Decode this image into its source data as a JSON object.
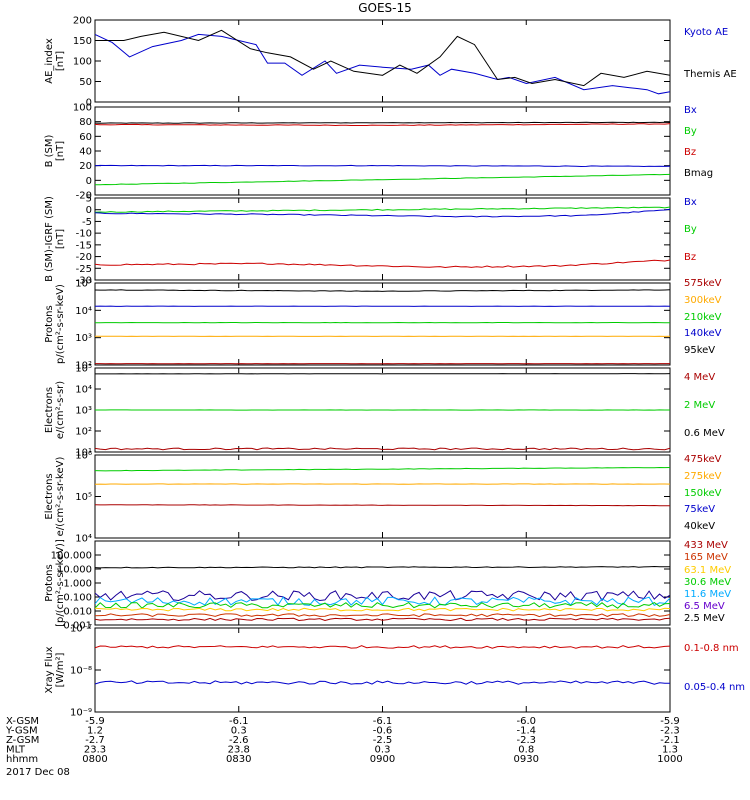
{
  "chart_data": {
    "title": "GOES-15",
    "date_label": "2017 Dec 08",
    "x_time": [
      "0800",
      "0830",
      "0900",
      "0930",
      "1000"
    ],
    "ephemeris_rows": [
      {
        "label": "X-GSM",
        "values": [
          "-5.9",
          "-6.1",
          "-6.1",
          "-6.0",
          "-5.9"
        ]
      },
      {
        "label": "Y-GSM",
        "values": [
          "1.2",
          "0.3",
          "-0.6",
          "-1.4",
          "-2.3"
        ]
      },
      {
        "label": "Z-GSM",
        "values": [
          "-2.7",
          "-2.6",
          "-2.5",
          "-2.3",
          "-2.1"
        ]
      },
      {
        "label": "MLT",
        "values": [
          "23.3",
          "23.8",
          "0.3",
          "0.8",
          "1.3"
        ]
      },
      {
        "label": "hhmm",
        "values": [
          "0800",
          "0830",
          "0900",
          "0930",
          "1000"
        ]
      }
    ],
    "panels": [
      {
        "type": "line",
        "ylabel": [
          "AE_index",
          "[nT]"
        ],
        "scale": "linear",
        "ylim": [
          0,
          200
        ],
        "ticks": [
          {
            "v": 0,
            "t": "0"
          },
          {
            "v": 50,
            "t": "50"
          },
          {
            "v": 100,
            "t": "100"
          },
          {
            "v": 150,
            "t": "150"
          },
          {
            "v": 200,
            "t": "200"
          }
        ],
        "legend": [
          {
            "label": "Kyoto AE",
            "color": "#0000cc"
          },
          {
            "label": "Themis AE",
            "color": "#000000"
          }
        ],
        "series": [
          {
            "name": "Kyoto AE",
            "color": "#0000cc",
            "noise": 0,
            "kind": "pts",
            "x": [
              0,
              0.03,
              0.06,
              0.1,
              0.15,
              0.18,
              0.22,
              0.28,
              0.3,
              0.33,
              0.36,
              0.4,
              0.42,
              0.46,
              0.5,
              0.55,
              0.58,
              0.6,
              0.62,
              0.66,
              0.7,
              0.72,
              0.75,
              0.8,
              0.85,
              0.9,
              0.93,
              0.96,
              0.98,
              1
            ],
            "y": [
              165,
              145,
              110,
              135,
              150,
              165,
              160,
              140,
              95,
              95,
              65,
              100,
              70,
              90,
              85,
              80,
              90,
              65,
              80,
              70,
              55,
              60,
              45,
              60,
              30,
              40,
              35,
              30,
              20,
              25
            ]
          },
          {
            "name": "Themis AE",
            "color": "#000000",
            "noise": 0,
            "kind": "pts",
            "x": [
              0,
              0.05,
              0.08,
              0.12,
              0.18,
              0.22,
              0.27,
              0.3,
              0.34,
              0.38,
              0.41,
              0.45,
              0.5,
              0.53,
              0.56,
              0.6,
              0.63,
              0.66,
              0.7,
              0.73,
              0.76,
              0.8,
              0.85,
              0.88,
              0.92,
              0.96,
              1
            ],
            "y": [
              150,
              150,
              160,
              170,
              150,
              175,
              130,
              120,
              110,
              80,
              100,
              75,
              65,
              90,
              70,
              110,
              160,
              140,
              55,
              60,
              45,
              55,
              40,
              70,
              60,
              75,
              65
            ]
          }
        ]
      },
      {
        "type": "line",
        "ylabel": [
          "B (SM)",
          "[nT]"
        ],
        "scale": "linear",
        "ylim": [
          -20,
          100
        ],
        "ticks": [
          {
            "v": -20,
            "t": "-20"
          },
          {
            "v": 0,
            "t": "0"
          },
          {
            "v": 20,
            "t": "20"
          },
          {
            "v": 40,
            "t": "40"
          },
          {
            "v": 60,
            "t": "60"
          },
          {
            "v": 80,
            "t": "80"
          },
          {
            "v": 100,
            "t": "100"
          }
        ],
        "legend": [
          {
            "label": "Bx",
            "color": "#0000cc"
          },
          {
            "label": "By",
            "color": "#00cc00"
          },
          {
            "label": "Bz",
            "color": "#cc0000"
          },
          {
            "label": "Bmag",
            "color": "#000000"
          }
        ],
        "series": [
          {
            "name": "Bmag",
            "color": "#000000",
            "noise": 0.3,
            "x": [
              0,
              1
            ],
            "y": [
              78,
              79
            ]
          },
          {
            "name": "Bz",
            "color": "#cc0000",
            "noise": 0.4,
            "x": [
              0,
              0.5,
              1
            ],
            "y": [
              76,
              75,
              77
            ]
          },
          {
            "name": "Bx",
            "color": "#0000cc",
            "noise": 0.4,
            "x": [
              0,
              0.5,
              1
            ],
            "y": [
              20,
              20,
              19
            ]
          },
          {
            "name": "By",
            "color": "#00cc00",
            "noise": 0.3,
            "x": [
              0,
              1
            ],
            "y": [
              -6,
              8
            ]
          }
        ]
      },
      {
        "type": "line",
        "ylabel": [
          "B (SM)-IGRF (SM)",
          "[nT]"
        ],
        "scale": "linear",
        "ylim": [
          -30,
          5
        ],
        "ticks": [
          {
            "v": -30,
            "t": "-30"
          },
          {
            "v": -25,
            "t": "-25"
          },
          {
            "v": -20,
            "t": "-20"
          },
          {
            "v": -15,
            "t": "-15"
          },
          {
            "v": -10,
            "t": "-10"
          },
          {
            "v": -5,
            "t": "-5"
          },
          {
            "v": 0,
            "t": "0"
          },
          {
            "v": 5,
            "t": "5"
          }
        ],
        "legend": [
          {
            "label": "Bx",
            "color": "#0000cc"
          },
          {
            "label": "By",
            "color": "#00cc00"
          },
          {
            "label": "Bz",
            "color": "#cc0000"
          }
        ],
        "series": [
          {
            "name": "By",
            "color": "#00cc00",
            "noise": 0.2,
            "x": [
              0,
              0.5,
              1
            ],
            "y": [
              -1,
              0,
              1
            ]
          },
          {
            "name": "Bx",
            "color": "#0000cc",
            "noise": 0.2,
            "x": [
              0,
              0.3,
              0.65,
              0.85,
              1
            ],
            "y": [
              -1.5,
              -2,
              -3,
              -2.5,
              0
            ]
          },
          {
            "name": "Bz",
            "color": "#cc0000",
            "noise": 0.3,
            "x": [
              0,
              0.3,
              0.6,
              0.8,
              1
            ],
            "y": [
              -23.5,
              -23,
              -24.5,
              -24,
              -21.5
            ]
          }
        ]
      },
      {
        "type": "line",
        "ylabel": [
          "Protons",
          "p/(cm²-s-sr-keV)"
        ],
        "scale": "log",
        "ylim": [
          2,
          5
        ],
        "ticks": [
          {
            "v": 2,
            "t": "10²"
          },
          {
            "v": 3,
            "t": "10³"
          },
          {
            "v": 4,
            "t": "10⁴"
          },
          {
            "v": 5,
            "t": "10⁵"
          }
        ],
        "legend": [
          {
            "label": "575keV",
            "color": "#aa0000"
          },
          {
            "label": "300keV",
            "color": "#ffaa00"
          },
          {
            "label": "210keV",
            "color": "#00cc00"
          },
          {
            "label": "140keV",
            "color": "#0000cc"
          },
          {
            "label": "95keV",
            "color": "#000000"
          }
        ],
        "series": [
          {
            "name": "95keV",
            "color": "#000000",
            "noise": 0.01,
            "x": [
              0,
              0.5,
              1
            ],
            "y": [
              4.75,
              4.7,
              4.75
            ]
          },
          {
            "name": "140keV",
            "color": "#0000cc",
            "noise": 0.005,
            "x": [
              0,
              1
            ],
            "y": [
              4.15,
              4.15
            ]
          },
          {
            "name": "210keV",
            "color": "#00cc00",
            "noise": 0.005,
            "x": [
              0,
              1
            ],
            "y": [
              3.55,
              3.55
            ]
          },
          {
            "name": "300keV",
            "color": "#ffaa00",
            "noise": 0.005,
            "x": [
              0,
              1
            ],
            "y": [
              3.05,
              3.05
            ]
          },
          {
            "name": "575keV",
            "color": "#aa0000",
            "noise": 0.003,
            "x": [
              0,
              1
            ],
            "y": [
              2.05,
              2.05
            ]
          }
        ]
      },
      {
        "type": "line",
        "ylabel": [
          "Electrons",
          "e/(cm²-s-sr)"
        ],
        "scale": "log",
        "ylim": [
          1,
          5
        ],
        "ticks": [
          {
            "v": 1,
            "t": "10¹"
          },
          {
            "v": 2,
            "t": "10²"
          },
          {
            "v": 3,
            "t": "10³"
          },
          {
            "v": 4,
            "t": "10⁴"
          },
          {
            "v": 5,
            "t": "10⁵"
          }
        ],
        "legend": [
          {
            "label": "4 MeV",
            "color": "#aa0000"
          },
          {
            "label": "2 MeV",
            "color": "#00cc00"
          },
          {
            "label": "0.6 MeV",
            "color": "#000000"
          }
        ],
        "series": [
          {
            "name": "0.6 MeV",
            "color": "#000000",
            "noise": 0.004,
            "x": [
              0,
              1
            ],
            "y": [
              4.72,
              4.73
            ]
          },
          {
            "name": "2 MeV",
            "color": "#00cc00",
            "noise": 0.004,
            "x": [
              0,
              1
            ],
            "y": [
              3.0,
              3.0
            ]
          },
          {
            "name": "4 MeV",
            "color": "#aa0000",
            "noise": 0.04,
            "x": [
              0,
              1
            ],
            "y": [
              1.15,
              1.15
            ]
          }
        ]
      },
      {
        "type": "line",
        "ylabel": [
          "Electrons",
          "e/(cm²-s-sr-keV)"
        ],
        "scale": "log",
        "ylim": [
          4,
          6
        ],
        "ticks": [
          {
            "v": 4,
            "t": "10⁴"
          },
          {
            "v": 5,
            "t": "10⁵"
          },
          {
            "v": 6,
            "t": "10⁶"
          }
        ],
        "legend": [
          {
            "label": "475keV",
            "color": "#aa0000"
          },
          {
            "label": "275keV",
            "color": "#ffaa00"
          },
          {
            "label": "150keV",
            "color": "#00cc00"
          },
          {
            "label": "75keV",
            "color": "#0000cc"
          },
          {
            "label": "40keV",
            "color": "#000000"
          }
        ],
        "series": [
          {
            "name": "150keV",
            "color": "#00cc00",
            "noise": 0.005,
            "x": [
              0,
              1
            ],
            "y": [
              5.62,
              5.7
            ]
          },
          {
            "name": "275keV",
            "color": "#ffaa00",
            "noise": 0.004,
            "x": [
              0,
              1
            ],
            "y": [
              5.3,
              5.3
            ]
          },
          {
            "name": "475keV",
            "color": "#aa0000",
            "noise": 0.004,
            "x": [
              0,
              1
            ],
            "y": [
              4.8,
              4.78
            ]
          }
        ]
      },
      {
        "type": "line",
        "ylabel": [
          "Protons",
          "[p/(cm²-s-sr-keV)]"
        ],
        "scale": "log",
        "ylim": [
          -3,
          3
        ],
        "ticks": [
          {
            "v": -3,
            "t": "0.001"
          },
          {
            "v": -2,
            "t": "0.010"
          },
          {
            "v": -1,
            "t": "0.100"
          },
          {
            "v": 0,
            "t": "1.000"
          },
          {
            "v": 1,
            "t": "10.000"
          },
          {
            "v": 2,
            "t": "100.000"
          }
        ],
        "legend": [
          {
            "label": "433 MeV",
            "color": "#aa0000"
          },
          {
            "label": "165 MeV",
            "color": "#cc3300"
          },
          {
            "label": "63.1 MeV",
            "color": "#ffcc00"
          },
          {
            "label": "30.6 MeV",
            "color": "#00cc00"
          },
          {
            "label": "11.6 MeV",
            "color": "#00aaff"
          },
          {
            "label": "6.5 MeV",
            "color": "#6600cc"
          },
          {
            "label": "2.5 MeV",
            "color": "#000000"
          }
        ],
        "series": [
          {
            "name": "2.5 MeV",
            "color": "#000000",
            "noise": 0.03,
            "x": [
              0,
              1
            ],
            "y": [
              1.1,
              1.15
            ]
          },
          {
            "name": "6.5 MeV",
            "color": "#1a0099",
            "noise": 0.35,
            "x": [
              0,
              1
            ],
            "y": [
              -0.9,
              -0.9
            ]
          },
          {
            "name": "11.6 MeV",
            "color": "#00aaff",
            "noise": 0.3,
            "x": [
              0,
              1
            ],
            "y": [
              -1.3,
              -1.3
            ]
          },
          {
            "name": "30.6 MeV",
            "color": "#00cc00",
            "noise": 0.2,
            "x": [
              0,
              1
            ],
            "y": [
              -1.6,
              -1.6
            ]
          },
          {
            "name": "63.1 MeV",
            "color": "#ffcc00",
            "noise": 0.1,
            "x": [
              0,
              1
            ],
            "y": [
              -1.9,
              -1.9
            ]
          },
          {
            "name": "165 MeV",
            "color": "#cc3300",
            "noise": 0.1,
            "x": [
              0,
              1
            ],
            "y": [
              -2.3,
              -2.3
            ]
          },
          {
            "name": "433 MeV",
            "color": "#aa0000",
            "noise": 0.08,
            "x": [
              0,
              1
            ],
            "y": [
              -2.6,
              -2.6
            ]
          }
        ]
      },
      {
        "type": "line",
        "ylabel": [
          "Xray Flux",
          "[W/m²]"
        ],
        "scale": "log",
        "ylim": [
          -9,
          -7
        ],
        "ticks": [
          {
            "v": -9,
            "t": "10⁻⁹"
          },
          {
            "v": -8,
            "t": "10⁻⁸"
          },
          {
            "v": -7,
            "t": "10⁻⁷"
          }
        ],
        "legend": [
          {
            "label": "0.1-0.8 nm",
            "color": "#cc0000"
          },
          {
            "label": "0.05-0.4 nm",
            "color": "#0000cc"
          }
        ],
        "series": [
          {
            "name": "0.1-0.8 nm",
            "color": "#cc0000",
            "noise": 0.03,
            "x": [
              0,
              1
            ],
            "y": [
              -7.45,
              -7.45
            ]
          },
          {
            "name": "0.05-0.4 nm",
            "color": "#0000cc",
            "noise": 0.04,
            "x": [
              0,
              1
            ],
            "y": [
              -8.3,
              -8.3
            ]
          }
        ]
      }
    ]
  }
}
